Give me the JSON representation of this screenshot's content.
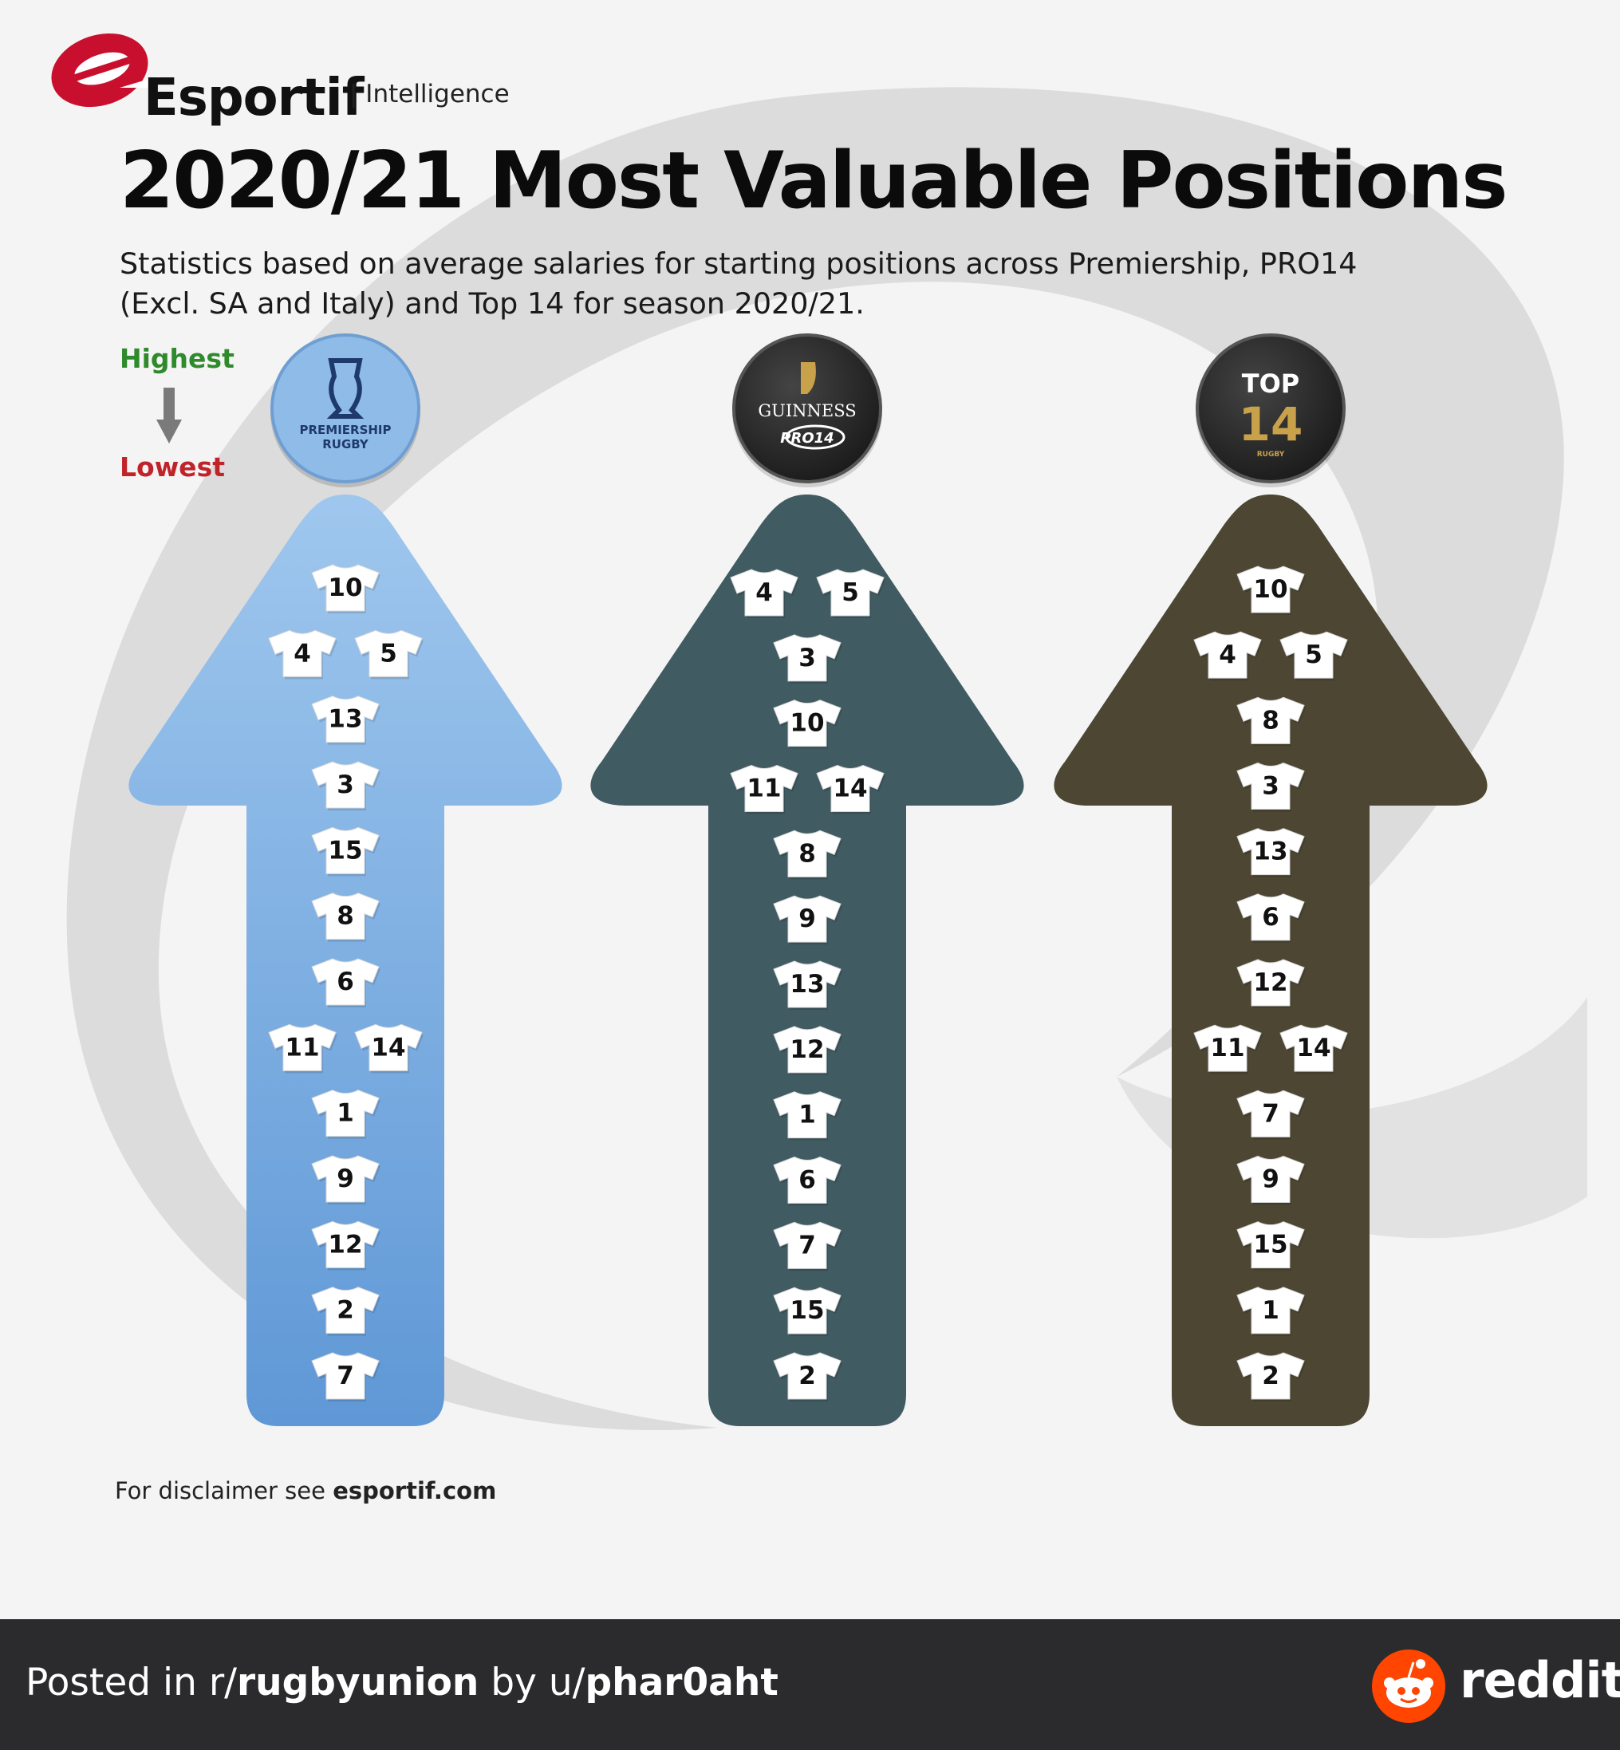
{
  "brand": {
    "name": "Esportif",
    "tagline": "| Intelligence"
  },
  "title": "2020/21 Most Valuable Positions",
  "subtitle": {
    "line1": "Statistics based on average salaries for starting positions across Premiership, PRO14",
    "line2": "(Excl. SA and Italy) and Top 14 for season 2020/21."
  },
  "legend": {
    "highest": "Highest",
    "lowest": "Lowest"
  },
  "colors": {
    "premiership_arrow": "#6a9fd7",
    "pro14_arrow": "#405b61",
    "top14_arrow": "#4c4633",
    "highest": "#2f8a2c",
    "lowest": "#c0242a",
    "footer": "#2b2b2d",
    "reddit_orange": "#ff4500"
  },
  "leagues": [
    {
      "name": "Premiership Rugby",
      "logo_text": [
        "PREMIERSHIP",
        "RUGBY"
      ],
      "rows": [
        [
          "10"
        ],
        [
          "4",
          "5"
        ],
        [
          "13"
        ],
        [
          "3"
        ],
        [
          "15"
        ],
        [
          "8"
        ],
        [
          "6"
        ],
        [
          "11",
          "14"
        ],
        [
          "1"
        ],
        [
          "9"
        ],
        [
          "12"
        ],
        [
          "2"
        ],
        [
          "7"
        ]
      ]
    },
    {
      "name": "Guinness PRO14",
      "logo_text": [
        "GUINNESS",
        "PRO14"
      ],
      "rows": [
        [
          "4",
          "5"
        ],
        [
          "3"
        ],
        [
          "10"
        ],
        [
          "11",
          "14"
        ],
        [
          "8"
        ],
        [
          "9"
        ],
        [
          "13"
        ],
        [
          "12"
        ],
        [
          "1"
        ],
        [
          "6"
        ],
        [
          "7"
        ],
        [
          "15"
        ],
        [
          "2"
        ]
      ]
    },
    {
      "name": "Top 14",
      "logo_text": [
        "TOP",
        "14",
        "RUGBY"
      ],
      "rows": [
        [
          "10"
        ],
        [
          "4",
          "5"
        ],
        [
          "8"
        ],
        [
          "3"
        ],
        [
          "13"
        ],
        [
          "6"
        ],
        [
          "12"
        ],
        [
          "11",
          "14"
        ],
        [
          "7"
        ],
        [
          "9"
        ],
        [
          "15"
        ],
        [
          "1"
        ],
        [
          "2"
        ]
      ]
    }
  ],
  "disclaimer": {
    "prefix": "For disclaimer see",
    "site": "esportif.com"
  },
  "footer": {
    "posted_in": "Posted in r/",
    "subreddit": "rugbyunion",
    "by": " by u/",
    "user": "phar0aht",
    "brand": "reddit"
  }
}
